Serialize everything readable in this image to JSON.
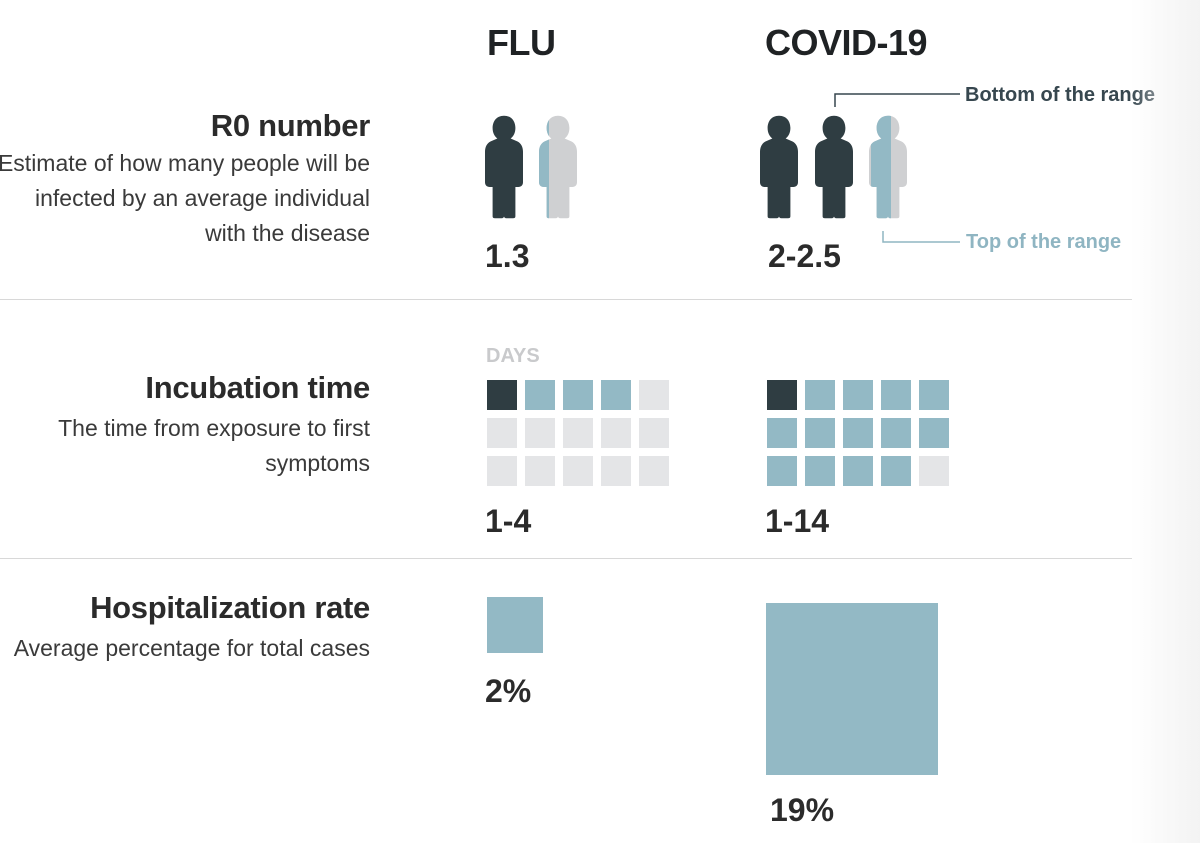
{
  "columns": {
    "flu": "FLU",
    "covid": "COVID-19"
  },
  "colors": {
    "dark": "#2f3d42",
    "blue": "#93b9c5",
    "grey": "#e4e5e7",
    "figure_grey": "#cfd0d2",
    "annot_dark": "#37474f",
    "annot_blue": "#8fb5c2"
  },
  "rows": {
    "r0": {
      "title": "R0 number",
      "description": "Estimate of how many people will be infected by an average individual with the disease",
      "flu_value": "1.3",
      "covid_value": "2-2.5",
      "flu_figures": [
        1,
        0.3
      ],
      "covid_figures": [
        1,
        1,
        0.5
      ],
      "annotation_bottom": "Bottom of the range",
      "annotation_top": "Top of the range"
    },
    "incubation": {
      "title": "Incubation time",
      "description": "The time from exposure to first symptoms",
      "days_label": "DAYS",
      "flu_value": "1-4",
      "covid_value": "1-14",
      "flu_days": {
        "min": 1,
        "max": 4,
        "total": 15
      },
      "covid_days": {
        "min": 1,
        "max": 14,
        "total": 15
      }
    },
    "hospitalization": {
      "title": "Hospitalization rate",
      "description": "Average percentage for total cases",
      "flu_value": "2%",
      "covid_value": "19%",
      "flu_rate": 2,
      "covid_rate": 19
    }
  }
}
